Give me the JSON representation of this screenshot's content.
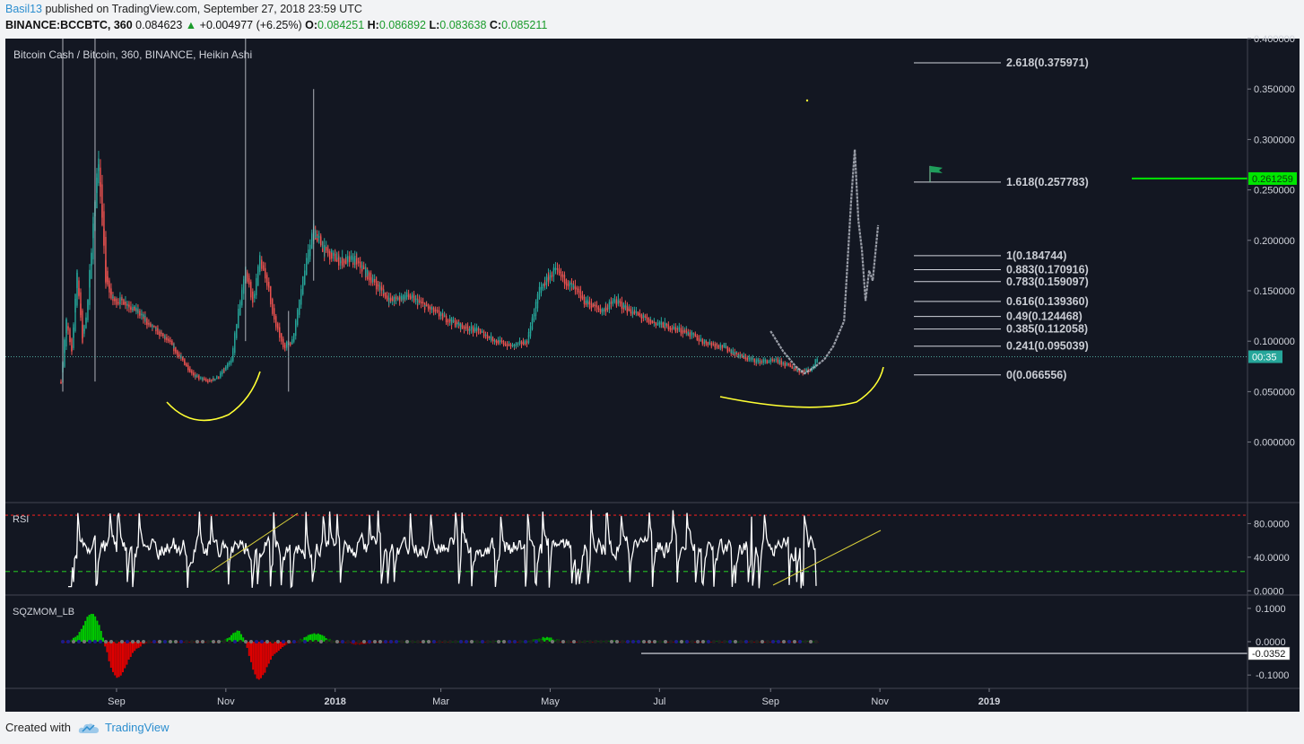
{
  "header": {
    "user": "Basil13",
    "published": " published on TradingView.com, September 27, 2018 23:59 UTC",
    "symbol": "BINANCE:BCCBTC, 360",
    "price": "0.084623",
    "change": "+0.004977 (+6.25%)",
    "o_label": "O:",
    "o_value": "0.084251",
    "h_label": "H:",
    "h_value": "0.086892",
    "l_label": "L:",
    "l_value": "0.083638",
    "c_label": "C:",
    "c_value": "0.085211"
  },
  "footer": {
    "created_with": "Created with",
    "brand": "TradingView"
  },
  "colors": {
    "background": "#131722",
    "up": "#26a69a",
    "down": "#ef5350",
    "annotation": "#ffff33",
    "green_line": "#00e600",
    "rsi_line": "#ffffff",
    "rsi_upper": "#e52020",
    "rsi_lower": "#22aa22"
  },
  "chart_data": [
    {
      "type": "candlestick",
      "title": "Bitcoin Cash / Bitcoin, 360, BINANCE, Heikin Ashi",
      "ylim": [
        -0.06,
        0.4
      ],
      "y_ticks": [
        "0.400000",
        "0.350000",
        "0.300000",
        "0.250000",
        "0.200000",
        "0.150000",
        "0.100000",
        "0.050000",
        "0.000000"
      ],
      "x_ticks": [
        "Sep",
        "Nov",
        "2018",
        "Mar",
        "May",
        "Jul",
        "Sep",
        "Nov",
        "2019"
      ],
      "price_path": [
        [
          "2017-08-01",
          0.06
        ],
        [
          "2017-08-04",
          0.12
        ],
        [
          "2017-08-07",
          0.09
        ],
        [
          "2017-08-10",
          0.17
        ],
        [
          "2017-08-13",
          0.1
        ],
        [
          "2017-08-16",
          0.14
        ],
        [
          "2017-08-19",
          0.22
        ],
        [
          "2017-08-22",
          0.28
        ],
        [
          "2017-08-26",
          0.16
        ],
        [
          "2017-08-30",
          0.14
        ],
        [
          "2017-09-05",
          0.14
        ],
        [
          "2017-09-12",
          0.13
        ],
        [
          "2017-09-20",
          0.115
        ],
        [
          "2017-09-30",
          0.1
        ],
        [
          "2017-10-08",
          0.08
        ],
        [
          "2017-10-15",
          0.065
        ],
        [
          "2017-10-22",
          0.06
        ],
        [
          "2017-10-28",
          0.065
        ],
        [
          "2017-11-04",
          0.08
        ],
        [
          "2017-11-08",
          0.13
        ],
        [
          "2017-11-12",
          0.17
        ],
        [
          "2017-11-16",
          0.14
        ],
        [
          "2017-11-20",
          0.18
        ],
        [
          "2017-11-24",
          0.16
        ],
        [
          "2017-11-28",
          0.12
        ],
        [
          "2017-12-03",
          0.095
        ],
        [
          "2017-12-08",
          0.1
        ],
        [
          "2017-12-15",
          0.17
        ],
        [
          "2017-12-20",
          0.21
        ],
        [
          "2017-12-26",
          0.19
        ],
        [
          "2018-01-03",
          0.18
        ],
        [
          "2018-01-12",
          0.18
        ],
        [
          "2018-01-22",
          0.16
        ],
        [
          "2018-02-01",
          0.14
        ],
        [
          "2018-02-10",
          0.145
        ],
        [
          "2018-02-20",
          0.135
        ],
        [
          "2018-03-01",
          0.125
        ],
        [
          "2018-03-12",
          0.115
        ],
        [
          "2018-03-22",
          0.11
        ],
        [
          "2018-04-01",
          0.1
        ],
        [
          "2018-04-10",
          0.095
        ],
        [
          "2018-04-18",
          0.1
        ],
        [
          "2018-04-25",
          0.15
        ],
        [
          "2018-05-03",
          0.17
        ],
        [
          "2018-05-10",
          0.16
        ],
        [
          "2018-05-20",
          0.14
        ],
        [
          "2018-05-30",
          0.13
        ],
        [
          "2018-06-06",
          0.14
        ],
        [
          "2018-06-15",
          0.13
        ],
        [
          "2018-06-25",
          0.12
        ],
        [
          "2018-07-05",
          0.115
        ],
        [
          "2018-07-15",
          0.11
        ],
        [
          "2018-07-25",
          0.1
        ],
        [
          "2018-08-05",
          0.095
        ],
        [
          "2018-08-15",
          0.085
        ],
        [
          "2018-08-25",
          0.08
        ],
        [
          "2018-09-05",
          0.08
        ],
        [
          "2018-09-12",
          0.075
        ],
        [
          "2018-09-18",
          0.07
        ],
        [
          "2018-09-24",
          0.072
        ],
        [
          "2018-09-27",
          0.0846
        ]
      ],
      "projection_path": [
        [
          "2018-09-01",
          0.11
        ],
        [
          "2018-09-08",
          0.09
        ],
        [
          "2018-09-15",
          0.075
        ],
        [
          "2018-09-20",
          0.068
        ],
        [
          "2018-09-26",
          0.075
        ],
        [
          "2018-10-01",
          0.082
        ],
        [
          "2018-10-06",
          0.095
        ],
        [
          "2018-10-12",
          0.12
        ],
        [
          "2018-10-16",
          0.24
        ],
        [
          "2018-10-18",
          0.29
        ],
        [
          "2018-10-20",
          0.22
        ],
        [
          "2018-10-22",
          0.19
        ],
        [
          "2018-10-24",
          0.14
        ],
        [
          "2018-10-26",
          0.17
        ],
        [
          "2018-10-28",
          0.16
        ],
        [
          "2018-10-31",
          0.215
        ]
      ],
      "fibonacci": [
        {
          "label": "2.618(0.375971)",
          "value": 0.375971
        },
        {
          "label": "1.618(0.257783)",
          "value": 0.257783
        },
        {
          "label": "1(0.184744)",
          "value": 0.184744
        },
        {
          "label": "0.883(0.170916)",
          "value": 0.170916
        },
        {
          "label": "0.783(0.159097)",
          "value": 0.159097
        },
        {
          "label": "0.616(0.139360)",
          "value": 0.13936
        },
        {
          "label": "0.49(0.124468)",
          "value": 0.124468
        },
        {
          "label": "0.385(0.112058)",
          "value": 0.112058
        },
        {
          "label": "0.241(0.095039)",
          "value": 0.095039
        },
        {
          "label": "0(0.066556)",
          "value": 0.066556
        }
      ],
      "horizontal_line": {
        "value": 0.261259,
        "label": "0.261259"
      },
      "current_price_line": {
        "value": 0.0846,
        "countdown": "00:35"
      }
    },
    {
      "type": "line",
      "title": "RSI",
      "ylim": [
        -5,
        105
      ],
      "y_ticks": [
        "80.0000",
        "40.0000",
        "0.0000"
      ],
      "overbought": 90,
      "oversold": 23
    },
    {
      "type": "bar",
      "title": "SQZMOM_LB",
      "ylim": [
        -0.14,
        0.14
      ],
      "y_ticks": [
        "0.1000",
        "0.0000",
        "-0.1000"
      ],
      "last_value_label": "-0.0352"
    }
  ]
}
